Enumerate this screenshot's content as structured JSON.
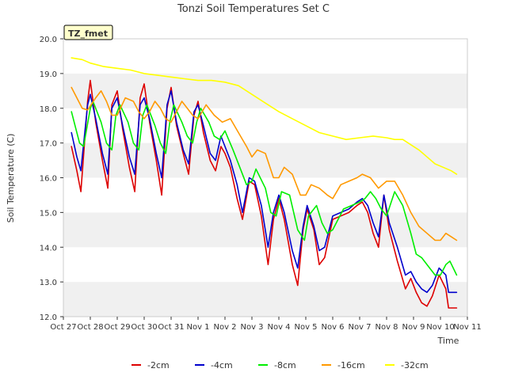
{
  "chart_data": {
    "type": "line",
    "title": "Tonzi Soil Temperatures Set C",
    "xlabel": "Time",
    "ylabel": "Soil Temperature (C)",
    "xlim": [
      0,
      15
    ],
    "ylim": [
      12.0,
      20.0
    ],
    "x_ticks": [
      0,
      1,
      2,
      3,
      4,
      5,
      6,
      7,
      8,
      9,
      10,
      11,
      12,
      13,
      14,
      15
    ],
    "x_tick_labels": [
      "Oct 27",
      "Oct 28",
      "Oct 29",
      "Oct 30",
      "Oct 31",
      "Nov 1",
      "Nov 2",
      "Nov 3",
      "Nov 4",
      "Nov 5",
      "Nov 6",
      "Nov 7",
      "Nov 8",
      "Nov 9",
      "Nov 10",
      "Nov 11"
    ],
    "y_ticks": [
      12.0,
      13.0,
      14.0,
      15.0,
      16.0,
      17.0,
      18.0,
      19.0,
      20.0
    ],
    "y_tick_labels": [
      "12.0",
      "13.0",
      "14.0",
      "15.0",
      "16.0",
      "17.0",
      "18.0",
      "19.0",
      "20.0"
    ],
    "annotation": "TZ_fmet",
    "legend_position": "bottom",
    "series": [
      {
        "name": "-2cm",
        "color": "#dd0000",
        "x": [
          0.3,
          0.5,
          0.65,
          0.9,
          1.0,
          1.2,
          1.45,
          1.65,
          1.8,
          2.0,
          2.2,
          2.45,
          2.65,
          2.85,
          3.0,
          3.2,
          3.45,
          3.65,
          3.85,
          4.0,
          4.2,
          4.45,
          4.65,
          4.85,
          5.0,
          5.2,
          5.45,
          5.65,
          5.85,
          6.0,
          6.2,
          6.45,
          6.65,
          6.9,
          7.1,
          7.35,
          7.6,
          7.8,
          8.0,
          8.2,
          8.5,
          8.7,
          8.9,
          9.05,
          9.3,
          9.5,
          9.7,
          10.0,
          10.3,
          10.6,
          10.9,
          11.1,
          11.3,
          11.5,
          11.7,
          11.9,
          12.1,
          12.4,
          12.7,
          12.9,
          13.1,
          13.3,
          13.5,
          13.7,
          13.95,
          14.2,
          14.3,
          14.45,
          14.6
        ],
        "y": [
          16.9,
          16.2,
          15.6,
          18.2,
          18.8,
          17.6,
          16.5,
          15.7,
          18.1,
          18.5,
          17.4,
          16.3,
          15.6,
          18.3,
          18.7,
          17.6,
          16.5,
          15.5,
          18.0,
          18.6,
          17.5,
          16.7,
          16.1,
          17.8,
          18.2,
          17.3,
          16.5,
          16.2,
          16.9,
          16.7,
          16.3,
          15.4,
          14.8,
          15.9,
          15.8,
          14.9,
          13.5,
          14.8,
          15.4,
          14.8,
          13.5,
          12.9,
          14.5,
          15.1,
          14.5,
          13.5,
          13.7,
          14.8,
          14.9,
          15.0,
          15.2,
          15.3,
          15.0,
          14.4,
          14.0,
          15.5,
          14.5,
          13.6,
          12.8,
          13.1,
          12.7,
          12.4,
          12.3,
          12.6,
          13.2,
          12.8,
          12.25,
          12.25,
          12.25
        ]
      },
      {
        "name": "-4cm",
        "color": "#0000cc",
        "x": [
          0.3,
          0.5,
          0.65,
          0.9,
          1.0,
          1.2,
          1.45,
          1.65,
          1.8,
          2.0,
          2.2,
          2.45,
          2.65,
          2.85,
          3.0,
          3.2,
          3.45,
          3.65,
          3.85,
          4.0,
          4.2,
          4.45,
          4.65,
          4.85,
          5.0,
          5.2,
          5.45,
          5.65,
          5.85,
          6.0,
          6.2,
          6.45,
          6.65,
          6.9,
          7.1,
          7.35,
          7.6,
          7.8,
          8.0,
          8.2,
          8.5,
          8.7,
          8.9,
          9.05,
          9.3,
          9.5,
          9.7,
          10.0,
          10.3,
          10.6,
          10.9,
          11.1,
          11.3,
          11.5,
          11.7,
          11.9,
          12.1,
          12.4,
          12.7,
          12.9,
          13.1,
          13.3,
          13.5,
          13.7,
          13.95,
          14.2,
          14.3,
          14.45,
          14.6
        ],
        "y": [
          17.3,
          16.6,
          16.2,
          18.1,
          18.4,
          17.7,
          16.7,
          16.1,
          18.0,
          18.3,
          17.5,
          16.6,
          16.1,
          18.1,
          18.3,
          17.7,
          16.7,
          16.0,
          18.1,
          18.5,
          17.6,
          16.8,
          16.4,
          17.9,
          18.1,
          17.5,
          16.7,
          16.5,
          17.2,
          16.9,
          16.5,
          15.8,
          15.0,
          16.0,
          15.9,
          15.2,
          14.0,
          15.0,
          15.5,
          15.0,
          13.9,
          13.4,
          14.6,
          15.2,
          14.6,
          13.9,
          14.0,
          14.9,
          15.0,
          15.1,
          15.3,
          15.4,
          15.2,
          14.7,
          14.3,
          15.5,
          14.7,
          14.0,
          13.2,
          13.3,
          13.0,
          12.8,
          12.7,
          12.9,
          13.4,
          13.2,
          12.7,
          12.7,
          12.7
        ]
      },
      {
        "name": "-8cm",
        "color": "#00ee00",
        "x": [
          0.3,
          0.6,
          0.75,
          1.0,
          1.1,
          1.4,
          1.6,
          1.8,
          1.95,
          2.1,
          2.4,
          2.6,
          2.8,
          2.95,
          3.1,
          3.4,
          3.6,
          3.8,
          3.95,
          4.1,
          4.4,
          4.6,
          4.8,
          4.95,
          5.1,
          5.4,
          5.6,
          5.8,
          6.0,
          6.3,
          6.6,
          6.8,
          7.0,
          7.15,
          7.5,
          7.7,
          7.9,
          8.1,
          8.4,
          8.7,
          8.95,
          9.1,
          9.4,
          9.6,
          9.8,
          10.0,
          10.4,
          10.7,
          11.0,
          11.2,
          11.4,
          11.6,
          11.8,
          12.0,
          12.3,
          12.6,
          12.9,
          13.1,
          13.3,
          13.6,
          13.8,
          14.0,
          14.2,
          14.35,
          14.6
        ],
        "y": [
          17.9,
          17.0,
          16.9,
          18.0,
          18.2,
          17.6,
          17.0,
          16.8,
          17.8,
          18.1,
          17.6,
          17.0,
          16.8,
          17.8,
          18.1,
          17.5,
          17.0,
          16.7,
          17.6,
          18.1,
          17.6,
          17.2,
          17.0,
          17.6,
          18.0,
          17.6,
          17.2,
          17.1,
          17.35,
          16.8,
          16.2,
          15.8,
          15.9,
          16.25,
          15.7,
          15.0,
          14.9,
          15.6,
          15.5,
          14.5,
          14.2,
          14.9,
          15.2,
          14.7,
          14.4,
          14.5,
          15.1,
          15.2,
          15.3,
          15.4,
          15.6,
          15.4,
          15.1,
          14.9,
          15.6,
          15.2,
          14.4,
          13.8,
          13.7,
          13.4,
          13.2,
          13.2,
          13.5,
          13.6,
          13.2
        ]
      },
      {
        "name": "-16cm",
        "color": "#ff9900",
        "x": [
          0.3,
          0.7,
          0.9,
          1.2,
          1.4,
          1.6,
          1.8,
          2.0,
          2.3,
          2.6,
          2.8,
          3.0,
          3.2,
          3.4,
          3.6,
          3.8,
          4.0,
          4.2,
          4.4,
          4.6,
          4.8,
          5.0,
          5.3,
          5.6,
          5.9,
          6.2,
          6.5,
          6.8,
          7.0,
          7.2,
          7.5,
          7.8,
          8.0,
          8.2,
          8.5,
          8.8,
          9.0,
          9.2,
          9.5,
          9.8,
          10.0,
          10.3,
          10.6,
          10.9,
          11.1,
          11.4,
          11.7,
          12.0,
          12.3,
          12.6,
          12.9,
          13.2,
          13.5,
          13.8,
          14.0,
          14.2,
          14.4,
          14.6
        ],
        "y": [
          18.6,
          18.0,
          17.95,
          18.3,
          18.5,
          18.2,
          17.8,
          17.8,
          18.3,
          18.2,
          17.9,
          17.7,
          17.9,
          18.2,
          18.0,
          17.7,
          17.6,
          17.9,
          18.2,
          18.0,
          17.8,
          17.7,
          18.1,
          17.8,
          17.6,
          17.7,
          17.3,
          16.9,
          16.6,
          16.8,
          16.7,
          16.0,
          16.0,
          16.3,
          16.1,
          15.5,
          15.5,
          15.8,
          15.7,
          15.5,
          15.4,
          15.8,
          15.9,
          16.0,
          16.1,
          16.0,
          15.7,
          15.9,
          15.9,
          15.5,
          15.0,
          14.6,
          14.4,
          14.2,
          14.2,
          14.4,
          14.3,
          14.2
        ]
      },
      {
        "name": "-32cm",
        "color": "#ffff00",
        "x": [
          0.3,
          0.7,
          1.0,
          1.5,
          2.0,
          2.5,
          3.0,
          3.5,
          4.0,
          4.5,
          5.0,
          5.5,
          6.0,
          6.5,
          7.0,
          7.5,
          8.0,
          8.5,
          9.0,
          9.5,
          10.0,
          10.5,
          11.0,
          11.5,
          12.0,
          12.3,
          12.6,
          12.9,
          13.2,
          13.5,
          13.8,
          14.1,
          14.4,
          14.6
        ],
        "y": [
          19.45,
          19.4,
          19.3,
          19.2,
          19.15,
          19.1,
          19.0,
          18.95,
          18.9,
          18.85,
          18.8,
          18.8,
          18.75,
          18.65,
          18.4,
          18.15,
          17.9,
          17.7,
          17.5,
          17.3,
          17.2,
          17.1,
          17.15,
          17.2,
          17.15,
          17.1,
          17.1,
          16.95,
          16.8,
          16.6,
          16.4,
          16.3,
          16.2,
          16.1
        ]
      }
    ]
  }
}
